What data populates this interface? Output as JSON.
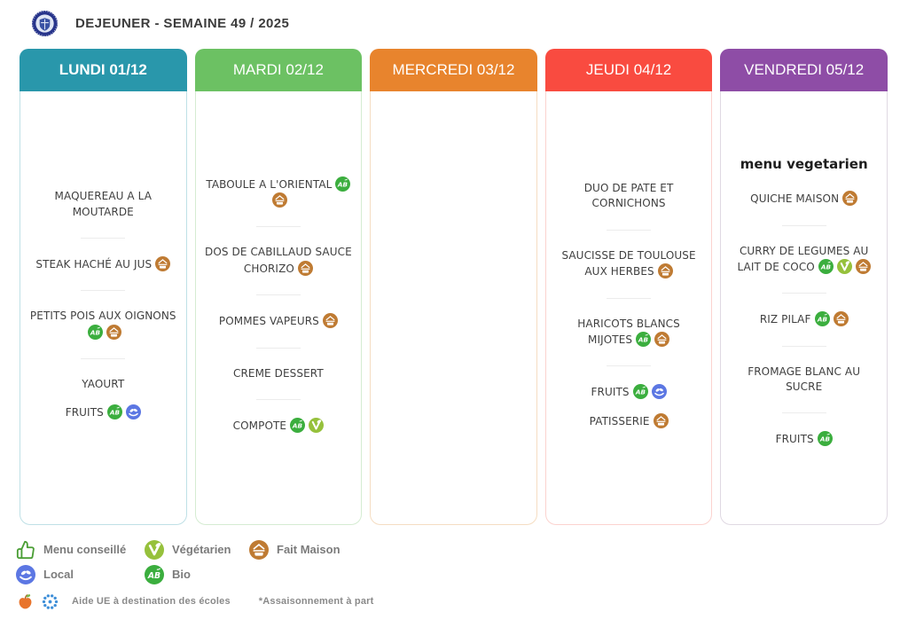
{
  "header": {
    "title": "DEJEUNER - SEMAINE 49 / 2025",
    "logo": "school-crest-logo"
  },
  "icon_defs": {
    "bio": {
      "label": "Bio",
      "color": "#3bae3e"
    },
    "fait_maison": {
      "label": "Fait Maison",
      "color": "#bf7b33"
    },
    "vegetarien": {
      "label": "Végétarien",
      "color": "#96c13c"
    },
    "local": {
      "label": "Local",
      "color": "#5c77e3"
    },
    "menu_conseille": {
      "label": "Menu conseillé",
      "color": "#4a9e35"
    },
    "apple": {
      "label": "aide-ue-apple",
      "color": "#e8742c"
    },
    "eu": {
      "label": "eu-stars",
      "color": "#3f8fd8"
    }
  },
  "days": [
    {
      "label": "LUNDI 01/12",
      "color": "#2997ab",
      "border": "#bfe0e6",
      "emphasis": true,
      "title": "",
      "groups": [
        [
          {
            "text": "MAQUEREAU A LA MOUTARDE",
            "icons": []
          }
        ],
        [
          {
            "text": "STEAK HACHÉ AU JUS",
            "icons": [
              "fait_maison"
            ]
          }
        ],
        [
          {
            "text": "PETITS POIS AUX OIGNONS",
            "icons": [
              "bio",
              "fait_maison"
            ]
          }
        ],
        [
          {
            "text": "YAOURT",
            "icons": []
          },
          {
            "text": "FRUITS",
            "icons": [
              "bio",
              "local"
            ]
          }
        ]
      ]
    },
    {
      "label": "MARDI 02/12",
      "color": "#6cc163",
      "border": "#d5ecd2",
      "emphasis": false,
      "title": "",
      "groups": [
        [
          {
            "text": "TABOULE A L'ORIENTAL",
            "icons": [
              "bio",
              "fait_maison"
            ]
          }
        ],
        [
          {
            "text": "DOS DE CABILLAUD SAUCE CHORIZO",
            "icons": [
              "fait_maison"
            ]
          }
        ],
        [
          {
            "text": "POMMES VAPEURS",
            "icons": [
              "fait_maison"
            ]
          }
        ],
        [
          {
            "text": "CREME DESSERT",
            "icons": []
          }
        ],
        [
          {
            "text": "COMPOTE",
            "icons": [
              "bio",
              "vegetarien"
            ]
          }
        ]
      ]
    },
    {
      "label": "MERCREDI 03/12",
      "color": "#e8842d",
      "border": "#f5ddc2",
      "emphasis": false,
      "title": "",
      "groups": []
    },
    {
      "label": "JEUDI 04/12",
      "color": "#f94b40",
      "border": "#fbd3cf",
      "emphasis": false,
      "title": "",
      "groups": [
        [
          {
            "text": "DUO DE PATE ET CORNICHONS",
            "icons": []
          }
        ],
        [
          {
            "text": "SAUCISSE DE TOULOUSE AUX HERBES",
            "icons": [
              "fait_maison"
            ]
          }
        ],
        [
          {
            "text": "HARICOTS BLANCS MIJOTES",
            "icons": [
              "bio",
              "fait_maison"
            ]
          }
        ],
        [
          {
            "text": "FRUITS",
            "icons": [
              "bio",
              "local"
            ]
          },
          {
            "text": "PATISSERIE",
            "icons": [
              "fait_maison"
            ]
          }
        ]
      ]
    },
    {
      "label": "VENDREDI 05/12",
      "color": "#8e4da6",
      "border": "#e0d9e3",
      "emphasis": false,
      "title": "menu vegetarien",
      "groups": [
        [
          {
            "text": "QUICHE MAISON",
            "icons": [
              "fait_maison"
            ]
          }
        ],
        [
          {
            "text": "CURRY DE LEGUMES AU LAIT DE COCO",
            "icons": [
              "bio",
              "vegetarien",
              "fait_maison"
            ]
          }
        ],
        [
          {
            "text": "RIZ PILAF",
            "icons": [
              "bio",
              "fait_maison"
            ]
          }
        ],
        [
          {
            "text": "FROMAGE BLANC AU SUCRE",
            "icons": []
          }
        ],
        [
          {
            "text": "FRUITS",
            "icons": [
              "bio"
            ]
          }
        ]
      ]
    }
  ],
  "legend": {
    "items": [
      {
        "icon": "menu_conseille",
        "label": "Menu conseillé"
      },
      {
        "icon": "vegetarien",
        "label": "Végétarien"
      },
      {
        "icon": "fait_maison",
        "label": "Fait Maison"
      },
      {
        "icon": "local",
        "label": "Local"
      },
      {
        "icon": "bio",
        "label": "Bio"
      }
    ],
    "aid": {
      "icons": [
        "apple",
        "eu"
      ],
      "label": "Aide UE à destination des écoles"
    },
    "note": "*Assaisonnement à part"
  }
}
